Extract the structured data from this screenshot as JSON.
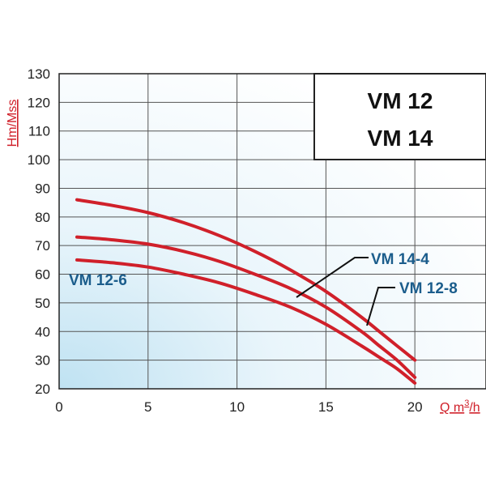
{
  "chart_data": {
    "type": "line",
    "title_lines": [
      "VM 12",
      "VM 14"
    ],
    "xlabel": "Q m³/h",
    "ylabel": "Hm/Mss",
    "xlim": [
      0,
      24
    ],
    "ylim": [
      20,
      130
    ],
    "x_ticks": [
      0,
      5,
      10,
      15,
      20
    ],
    "y_ticks": [
      20,
      30,
      40,
      50,
      60,
      70,
      80,
      90,
      100,
      110,
      120,
      130
    ],
    "grid": true,
    "series": [
      {
        "name": "VM 12-6",
        "x": [
          1,
          3,
          5,
          7,
          9,
          11,
          13,
          15,
          17,
          18,
          19,
          20
        ],
        "y": [
          65,
          64,
          62.5,
          60,
          57,
          53,
          48.5,
          42.5,
          35,
          31,
          27,
          22
        ]
      },
      {
        "name": "VM 14-4",
        "x": [
          1,
          3,
          5,
          7,
          9,
          11,
          13,
          15,
          17,
          18,
          19,
          20
        ],
        "y": [
          73,
          72,
          70.5,
          68,
          64.5,
          60,
          55,
          48.5,
          40,
          35,
          30,
          24
        ]
      },
      {
        "name": "VM 12-8",
        "x": [
          1,
          3,
          5,
          7,
          9,
          11,
          13,
          15,
          17,
          18,
          19,
          20
        ],
        "y": [
          86,
          84,
          81.5,
          78,
          73.5,
          68,
          61.5,
          54,
          45,
          40,
          35,
          30
        ]
      }
    ],
    "colors": {
      "curve": "#d0202a",
      "label": "#1b5d8c",
      "axis_title": "#d0202a"
    }
  }
}
